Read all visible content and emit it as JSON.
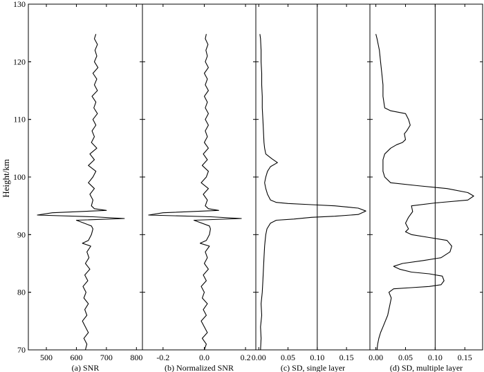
{
  "figure": {
    "ylabel": "Height/km",
    "y_ticks": [
      70,
      80,
      90,
      100,
      110,
      120,
      130
    ],
    "ylim": [
      70,
      130
    ]
  },
  "chart_data": [
    {
      "type": "line",
      "title": "(a) SNR",
      "xlim": [
        440,
        820
      ],
      "x_ticks": [
        500,
        600,
        700,
        800
      ],
      "x_tick_labels": [
        "500",
        "600",
        "700",
        "800"
      ],
      "ylim": [
        70,
        130
      ],
      "grid": false,
      "series": [
        {
          "points": [
            [
              630,
              70.0
            ],
            [
              635,
              71
            ],
            [
              625,
              72
            ],
            [
              640,
              73
            ],
            [
              630,
              74
            ],
            [
              620,
              75
            ],
            [
              635,
              76
            ],
            [
              628,
              77
            ],
            [
              640,
              78
            ],
            [
              625,
              79
            ],
            [
              632,
              80
            ],
            [
              622,
              81
            ],
            [
              638,
              82
            ],
            [
              628,
              83
            ],
            [
              645,
              84
            ],
            [
              630,
              85
            ],
            [
              642,
              86
            ],
            [
              635,
              87
            ],
            [
              648,
              88
            ],
            [
              620,
              88.5
            ],
            [
              640,
              89
            ],
            [
              650,
              90
            ],
            [
              655,
              91
            ],
            [
              650,
              91.5
            ],
            [
              600,
              92.5
            ],
            [
              760,
              92.8
            ],
            [
              655,
              93.1
            ],
            [
              470,
              93.4
            ],
            [
              520,
              93.8
            ],
            [
              700,
              94.2
            ],
            [
              660,
              94.5
            ],
            [
              650,
              95
            ],
            [
              655,
              96
            ],
            [
              645,
              97
            ],
            [
              660,
              98
            ],
            [
              640,
              99
            ],
            [
              655,
              100
            ],
            [
              665,
              101
            ],
            [
              640,
              102
            ],
            [
              660,
              103
            ],
            [
              645,
              104
            ],
            [
              668,
              105
            ],
            [
              650,
              106
            ],
            [
              660,
              107
            ],
            [
              652,
              108
            ],
            [
              665,
              109
            ],
            [
              655,
              110
            ],
            [
              670,
              111
            ],
            [
              658,
              112
            ],
            [
              665,
              113
            ],
            [
              652,
              114
            ],
            [
              670,
              115
            ],
            [
              660,
              116
            ],
            [
              668,
              117
            ],
            [
              655,
              118
            ],
            [
              672,
              119
            ],
            [
              660,
              120
            ],
            [
              668,
              121
            ],
            [
              662,
              122
            ],
            [
              670,
              123
            ],
            [
              660,
              124
            ],
            [
              665,
              124.8
            ]
          ]
        }
      ]
    },
    {
      "type": "line",
      "title": "(b) Normalized SNR",
      "xlim": [
        -0.3,
        0.25
      ],
      "x_ticks": [
        -0.2,
        0.0,
        0.2
      ],
      "x_tick_labels": [
        "-0.2",
        "0.0",
        "0.2"
      ],
      "ylim": [
        70,
        130
      ],
      "grid": false,
      "series": [
        {
          "points": [
            [
              0.0,
              70.0
            ],
            [
              0.01,
              71
            ],
            [
              -0.01,
              72
            ],
            [
              0.015,
              73
            ],
            [
              0.0,
              74
            ],
            [
              -0.015,
              75
            ],
            [
              0.01,
              76
            ],
            [
              -0.005,
              77
            ],
            [
              0.015,
              78
            ],
            [
              -0.01,
              79
            ],
            [
              0.0,
              80
            ],
            [
              -0.015,
              81
            ],
            [
              0.01,
              82
            ],
            [
              -0.005,
              83
            ],
            [
              0.02,
              84
            ],
            [
              0.0,
              85
            ],
            [
              0.015,
              86
            ],
            [
              0.005,
              87
            ],
            [
              0.025,
              88
            ],
            [
              -0.02,
              88.5
            ],
            [
              0.01,
              89
            ],
            [
              0.025,
              90
            ],
            [
              0.03,
              91
            ],
            [
              0.025,
              91.5
            ],
            [
              -0.05,
              92.5
            ],
            [
              0.18,
              92.8
            ],
            [
              0.03,
              93.1
            ],
            [
              -0.27,
              93.4
            ],
            [
              -0.2,
              93.8
            ],
            [
              0.07,
              94.2
            ],
            [
              0.02,
              94.5
            ],
            [
              0.005,
              95
            ],
            [
              0.015,
              96
            ],
            [
              -0.005,
              97
            ],
            [
              0.02,
              98
            ],
            [
              -0.015,
              99
            ],
            [
              0.01,
              100
            ],
            [
              0.02,
              101
            ],
            [
              -0.01,
              102
            ],
            [
              0.015,
              103
            ],
            [
              -0.005,
              104
            ],
            [
              0.02,
              105
            ],
            [
              0.0,
              106
            ],
            [
              0.015,
              107
            ],
            [
              0.005,
              108
            ],
            [
              0.02,
              109
            ],
            [
              0.005,
              110
            ],
            [
              0.02,
              111
            ],
            [
              0.005,
              112
            ],
            [
              0.015,
              113
            ],
            [
              0.0,
              114
            ],
            [
              0.02,
              115
            ],
            [
              0.005,
              116
            ],
            [
              0.015,
              117
            ],
            [
              0.0,
              118
            ],
            [
              0.02,
              119
            ],
            [
              0.005,
              120
            ],
            [
              0.015,
              121
            ],
            [
              0.008,
              122
            ],
            [
              0.018,
              123
            ],
            [
              0.005,
              124
            ],
            [
              0.01,
              124.8
            ]
          ]
        }
      ]
    },
    {
      "type": "line",
      "title": "(c) SD, single layer",
      "xlim": [
        -0.005,
        0.19
      ],
      "x_ticks": [
        0.0,
        0.05,
        0.1,
        0.15
      ],
      "x_tick_labels": [
        "0.00",
        "0.05",
        "0.10",
        "0.15"
      ],
      "vline": 0.1,
      "ylim": [
        70,
        130
      ],
      "grid": false,
      "series": [
        {
          "points": [
            [
              0.003,
              70
            ],
            [
              0.004,
              72
            ],
            [
              0.003,
              74
            ],
            [
              0.005,
              76
            ],
            [
              0.004,
              78
            ],
            [
              0.006,
              80
            ],
            [
              0.007,
              82
            ],
            [
              0.008,
              84
            ],
            [
              0.009,
              86
            ],
            [
              0.01,
              88
            ],
            [
              0.011,
              89
            ],
            [
              0.012,
              90
            ],
            [
              0.014,
              91
            ],
            [
              0.02,
              92
            ],
            [
              0.03,
              92.5
            ],
            [
              0.06,
              92.7
            ],
            [
              0.09,
              93
            ],
            [
              0.13,
              93.2
            ],
            [
              0.17,
              93.5
            ],
            [
              0.183,
              94.1
            ],
            [
              0.17,
              94.6
            ],
            [
              0.13,
              95
            ],
            [
              0.09,
              95.2
            ],
            [
              0.05,
              95.4
            ],
            [
              0.03,
              95.6
            ],
            [
              0.02,
              96
            ],
            [
              0.015,
              97
            ],
            [
              0.012,
              98
            ],
            [
              0.01,
              99
            ],
            [
              0.012,
              100
            ],
            [
              0.015,
              101
            ],
            [
              0.02,
              101.8
            ],
            [
              0.032,
              102.5
            ],
            [
              0.022,
              103.2
            ],
            [
              0.012,
              104
            ],
            [
              0.01,
              105
            ],
            [
              0.009,
              106
            ],
            [
              0.008,
              108
            ],
            [
              0.007,
              110
            ],
            [
              0.006,
              112
            ],
            [
              0.006,
              114
            ],
            [
              0.005,
              116
            ],
            [
              0.005,
              118
            ],
            [
              0.004,
              120
            ],
            [
              0.004,
              122
            ],
            [
              0.003,
              124
            ],
            [
              0.002,
              124.8
            ]
          ]
        }
      ]
    },
    {
      "type": "line",
      "title": "(d) SD, multiple layer",
      "xlim": [
        -0.01,
        0.18
      ],
      "x_ticks": [
        0.0,
        0.05,
        0.1,
        0.15
      ],
      "x_tick_labels": [
        "0.00",
        "0.05",
        "0.10",
        "0.15"
      ],
      "vline": 0.1,
      "ylim": [
        70,
        130
      ],
      "grid": false,
      "series": [
        {
          "points": [
            [
              0.002,
              70
            ],
            [
              0.003,
              71
            ],
            [
              0.005,
              72
            ],
            [
              0.008,
              73
            ],
            [
              0.012,
              74
            ],
            [
              0.016,
              75
            ],
            [
              0.02,
              76
            ],
            [
              0.024,
              78
            ],
            [
              0.026,
              79
            ],
            [
              0.022,
              80
            ],
            [
              0.03,
              80.6
            ],
            [
              0.06,
              80.8
            ],
            [
              0.09,
              81
            ],
            [
              0.11,
              81.3
            ],
            [
              0.115,
              82
            ],
            [
              0.112,
              82.8
            ],
            [
              0.09,
              83.2
            ],
            [
              0.06,
              83.5
            ],
            [
              0.04,
              84
            ],
            [
              0.03,
              84.5
            ],
            [
              0.045,
              85
            ],
            [
              0.08,
              85.5
            ],
            [
              0.11,
              86
            ],
            [
              0.125,
              87
            ],
            [
              0.128,
              88
            ],
            [
              0.12,
              89
            ],
            [
              0.09,
              89.5
            ],
            [
              0.06,
              90
            ],
            [
              0.05,
              90.5
            ],
            [
              0.055,
              91
            ],
            [
              0.05,
              92
            ],
            [
              0.055,
              93
            ],
            [
              0.062,
              94
            ],
            [
              0.06,
              95
            ],
            [
              0.1,
              95.5
            ],
            [
              0.155,
              96
            ],
            [
              0.165,
              96.7
            ],
            [
              0.155,
              97.3
            ],
            [
              0.12,
              98
            ],
            [
              0.07,
              98.5
            ],
            [
              0.025,
              99
            ],
            [
              0.015,
              100
            ],
            [
              0.012,
              101
            ],
            [
              0.012,
              103
            ],
            [
              0.015,
              104
            ],
            [
              0.025,
              105
            ],
            [
              0.035,
              105.6
            ],
            [
              0.045,
              106
            ],
            [
              0.05,
              106.5
            ],
            [
              0.048,
              107.5
            ],
            [
              0.052,
              108
            ],
            [
              0.058,
              109
            ],
            [
              0.055,
              110
            ],
            [
              0.05,
              111
            ],
            [
              0.025,
              111.5
            ],
            [
              0.015,
              112
            ],
            [
              0.012,
              114
            ],
            [
              0.012,
              116
            ],
            [
              0.01,
              118
            ],
            [
              0.008,
              120
            ],
            [
              0.006,
              122
            ],
            [
              0.004,
              123
            ],
            [
              0.002,
              124
            ],
            [
              0.0,
              124.8
            ]
          ]
        }
      ]
    }
  ]
}
